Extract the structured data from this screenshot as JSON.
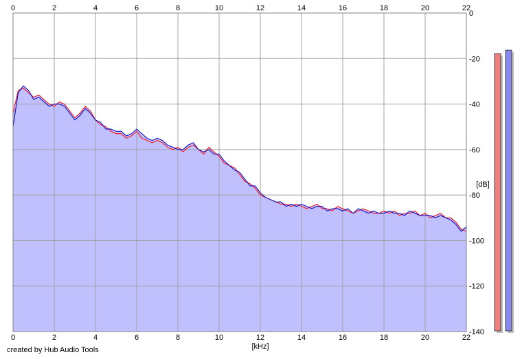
{
  "chart_data": {
    "type": "area",
    "xlabel": "[kHz]",
    "ylabel": "[dB]",
    "xlim": [
      0,
      22
    ],
    "ylim": [
      -140,
      0
    ],
    "x_ticks": [
      "0",
      "2",
      "4",
      "6",
      "8",
      "10",
      "12",
      "14",
      "16",
      "18",
      "20",
      "22"
    ],
    "y_ticks": [
      "0",
      "-20",
      "-40",
      "-60",
      "-80",
      "-100",
      "-120",
      "-140"
    ],
    "grid": true,
    "series": [
      {
        "color": "#ff0000",
        "x": [
          0,
          0.25,
          0.5,
          0.75,
          1,
          1.25,
          1.5,
          1.75,
          2,
          2.25,
          2.5,
          2.75,
          3,
          3.25,
          3.5,
          3.75,
          4,
          4.25,
          4.5,
          4.75,
          5,
          5.25,
          5.5,
          5.75,
          6,
          6.25,
          6.5,
          6.75,
          7,
          7.25,
          7.5,
          7.75,
          8,
          8.25,
          8.5,
          8.75,
          9,
          9.25,
          9.5,
          9.75,
          10,
          10.25,
          10.5,
          10.75,
          11,
          11.25,
          11.5,
          11.75,
          12,
          12.25,
          12.5,
          12.75,
          13,
          13.25,
          13.5,
          13.75,
          14,
          14.25,
          14.5,
          14.75,
          15,
          15.25,
          15.5,
          15.75,
          16,
          16.25,
          16.5,
          16.75,
          17,
          17.25,
          17.5,
          17.75,
          18,
          18.25,
          18.5,
          18.75,
          19,
          19.25,
          19.5,
          19.75,
          20,
          20.25,
          20.5,
          20.75,
          21,
          21.25,
          21.5,
          21.75,
          22
        ],
        "values": [
          -44,
          -34,
          -33,
          -35,
          -37,
          -36,
          -38,
          -40,
          -41,
          -39,
          -40,
          -43,
          -46,
          -44,
          -41,
          -43,
          -47,
          -49,
          -50,
          -52,
          -53,
          -53,
          -55,
          -54,
          -52,
          -55,
          -56,
          -57,
          -56,
          -57,
          -59,
          -60,
          -59,
          -61,
          -59,
          -58,
          -60,
          -62,
          -59,
          -61,
          -63,
          -66,
          -67,
          -68,
          -71,
          -74,
          -75,
          -77,
          -80,
          -81,
          -82,
          -83,
          -84,
          -84,
          -85,
          -84,
          -85,
          -86,
          -85,
          -84,
          -86,
          -86,
          -87,
          -85,
          -86,
          -87,
          -88,
          -87,
          -86,
          -87,
          -88,
          -88,
          -87,
          -88,
          -87,
          -89,
          -88,
          -88,
          -87,
          -89,
          -88,
          -90,
          -89,
          -88,
          -90,
          -90,
          -92,
          -95,
          -96
        ]
      },
      {
        "color": "#0000c0",
        "x": [
          0,
          0.25,
          0.5,
          0.75,
          1,
          1.25,
          1.5,
          1.75,
          2,
          2.25,
          2.5,
          2.75,
          3,
          3.25,
          3.5,
          3.75,
          4,
          4.25,
          4.5,
          4.75,
          5,
          5.25,
          5.5,
          5.75,
          6,
          6.25,
          6.5,
          6.75,
          7,
          7.25,
          7.5,
          7.75,
          8,
          8.25,
          8.5,
          8.75,
          9,
          9.25,
          9.5,
          9.75,
          10,
          10.25,
          10.5,
          10.75,
          11,
          11.25,
          11.5,
          11.75,
          12,
          12.25,
          12.5,
          12.75,
          13,
          13.25,
          13.5,
          13.75,
          14,
          14.25,
          14.5,
          14.75,
          15,
          15.25,
          15.5,
          15.75,
          16,
          16.25,
          16.5,
          16.75,
          17,
          17.25,
          17.5,
          17.75,
          18,
          18.25,
          18.5,
          18.75,
          19,
          19.25,
          19.5,
          19.75,
          20,
          20.25,
          20.5,
          20.75,
          21,
          21.25,
          21.5,
          21.75,
          22
        ],
        "values": [
          -50,
          -35,
          -32,
          -34,
          -38,
          -37,
          -39,
          -41,
          -40,
          -40,
          -41,
          -44,
          -47,
          -45,
          -42,
          -44,
          -47,
          -48,
          -51,
          -51,
          -52,
          -52,
          -54,
          -53,
          -51,
          -53,
          -55,
          -56,
          -55,
          -56,
          -58,
          -59,
          -60,
          -60,
          -58,
          -57,
          -60,
          -61,
          -60,
          -62,
          -62,
          -65,
          -67,
          -69,
          -70,
          -73,
          -76,
          -76,
          -79,
          -81,
          -82,
          -83,
          -83,
          -85,
          -84,
          -85,
          -84,
          -85,
          -86,
          -85,
          -85,
          -87,
          -86,
          -86,
          -87,
          -86,
          -88,
          -86,
          -87,
          -88,
          -87,
          -88,
          -88,
          -87,
          -88,
          -88,
          -89,
          -87,
          -88,
          -89,
          -89,
          -89,
          -90,
          -89,
          -90,
          -91,
          -93,
          -96,
          -94
        ]
      }
    ],
    "level_meters": [
      {
        "level_db": -10,
        "color": "#f08080"
      },
      {
        "level_db": -8.5,
        "color": "#8888ee"
      }
    ]
  },
  "footer": {
    "credit": "created by Hub Audio Tools"
  },
  "colors": {
    "fill": "#c0c0ff",
    "grid": "#a0a0a0",
    "frame": "#808080"
  }
}
